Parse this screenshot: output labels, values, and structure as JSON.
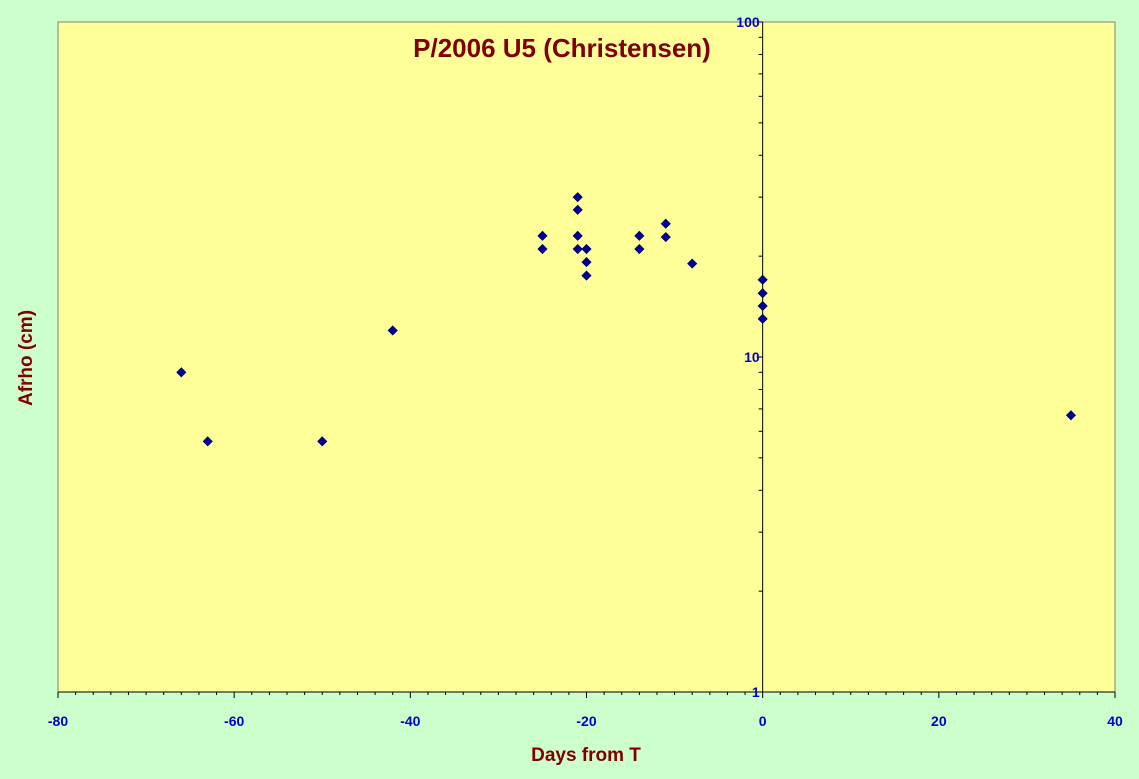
{
  "chart_data": {
    "type": "scatter",
    "title": "P/2006 U5 (Christensen)",
    "xlabel": "Days from T",
    "ylabel": "Afrho (cm)",
    "xlim": [
      -80,
      40
    ],
    "ylim": [
      1,
      100
    ],
    "y_scale": "log",
    "x_ticks": [
      -80,
      -60,
      -40,
      -20,
      0,
      20,
      40
    ],
    "y_ticks": [
      1,
      10,
      100
    ],
    "grid": false,
    "colors": {
      "background": "#ccffcc",
      "plot_area": "#ffff99",
      "marker": "#000099",
      "tick_labels": "#0000cc",
      "titles": "#800000"
    },
    "marker": "diamond",
    "series": [
      {
        "points": [
          [
            -66,
            9.0
          ],
          [
            -63,
            5.6
          ],
          [
            -50,
            5.6
          ],
          [
            -42,
            12.0
          ],
          [
            -25,
            23.0
          ],
          [
            -25,
            21.0
          ],
          [
            -21,
            30.0
          ],
          [
            -21,
            27.5
          ],
          [
            -21,
            23.0
          ],
          [
            -21,
            21.0
          ],
          [
            -20,
            21.0
          ],
          [
            -20,
            19.2
          ],
          [
            -20,
            17.5
          ],
          [
            -14,
            23.0
          ],
          [
            -14,
            21.0
          ],
          [
            -11,
            25.0
          ],
          [
            -11,
            22.8
          ],
          [
            -8,
            19.0
          ],
          [
            0,
            17.0
          ],
          [
            0,
            15.5
          ],
          [
            0,
            14.2
          ],
          [
            0,
            13.0
          ],
          [
            35,
            6.7
          ]
        ]
      }
    ]
  }
}
